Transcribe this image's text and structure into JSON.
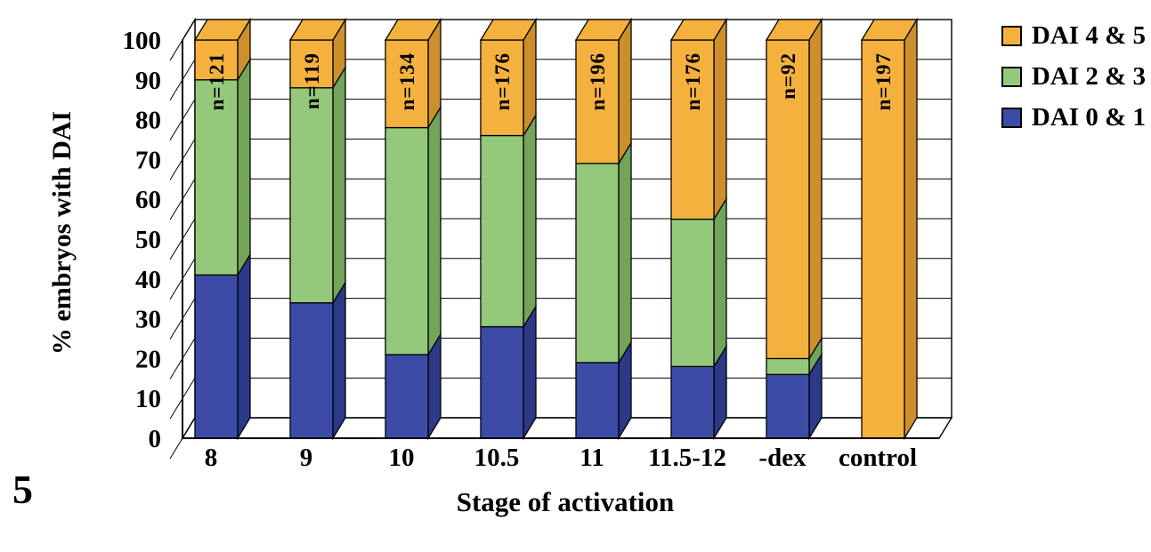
{
  "figure_label": "5",
  "legend": [
    {
      "label": "DAI 4 & 5",
      "color": "#F4B13E"
    },
    {
      "label": "DAI 2 & 3",
      "color": "#94C87A"
    },
    {
      "label": "DAI 0 & 1",
      "color": "#3C4CA6"
    }
  ],
  "chart_data": {
    "type": "bar",
    "stacked": true,
    "style": "3d",
    "title": "",
    "xlabel": "Stage of activation",
    "ylabel": "% embryos with DAI",
    "ylim": [
      0,
      100
    ],
    "yticks": [
      0,
      10,
      20,
      30,
      40,
      50,
      60,
      70,
      80,
      90,
      100
    ],
    "grid": true,
    "legend_position": "top-right",
    "categories": [
      "8",
      "9",
      "10",
      "10.5",
      "11",
      "11.5-12",
      "-dex",
      "control"
    ],
    "n_labels": [
      "n=121",
      "n=119",
      "n=134",
      "n=176",
      "n=196",
      "n=176",
      "n=92",
      "n=197"
    ],
    "series": [
      {
        "name": "DAI 0 & 1",
        "color": "#3C4CA6",
        "side_color": "#2B3987",
        "values": [
          41,
          34,
          21,
          28,
          19,
          18,
          16,
          0
        ]
      },
      {
        "name": "DAI 2 & 3",
        "color": "#94C87A",
        "side_color": "#72A55A",
        "values": [
          49,
          54,
          57,
          48,
          50,
          37,
          4,
          0
        ]
      },
      {
        "name": "DAI 4 & 5",
        "color": "#F4B13E",
        "side_color": "#CD8F2C",
        "values": [
          10,
          12,
          22,
          24,
          31,
          45,
          80,
          100
        ]
      }
    ]
  }
}
